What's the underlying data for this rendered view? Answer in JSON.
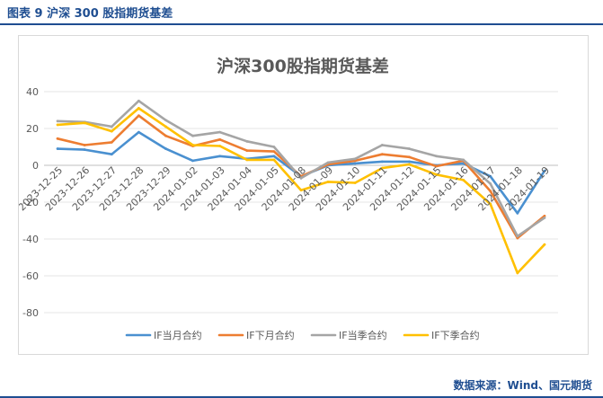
{
  "figure": {
    "label": "图表 9   沪深 300 股指期货基差",
    "source": "数据来源：Wind、国元期货"
  },
  "chart_data": {
    "type": "line",
    "title": "沪深300股指期货基差",
    "xlabel": "",
    "ylabel": "",
    "ylim": [
      -80,
      40
    ],
    "yticks": [
      40,
      20,
      0,
      -20,
      -40,
      -60,
      -80
    ],
    "grid": true,
    "legend_position": "bottom",
    "categories": [
      "2023-12-25",
      "2023-12-26",
      "2023-12-27",
      "2023-12-28",
      "2023-12-29",
      "2024-01-02",
      "2024-01-03",
      "2024-01-04",
      "2024-01-05",
      "2024-01-08",
      "2024-01-09",
      "2024-01-10",
      "2024-01-11",
      "2024-01-12",
      "2024-01-15",
      "2024-01-16",
      "2024-01-17",
      "2024-01-18",
      "2024-01-19"
    ],
    "series": [
      {
        "name": "IF当月合约",
        "color": "#4a90d0",
        "values": [
          9,
          8.5,
          6,
          18,
          9,
          2.5,
          5,
          3.5,
          5,
          -6,
          0,
          1,
          2,
          2,
          0,
          1,
          -6,
          -26,
          -3
        ]
      },
      {
        "name": "IF下月合约",
        "color": "#ed7d31",
        "values": [
          14.5,
          11,
          12.5,
          27,
          16,
          10.5,
          14,
          8,
          7.5,
          -6,
          0.5,
          2.5,
          6,
          4.5,
          -0.5,
          2.5,
          -14,
          -39.5,
          -27.5
        ]
      },
      {
        "name": "IF当季合约",
        "color": "#a5a5a5",
        "values": [
          24,
          23.5,
          21,
          35,
          24.5,
          16,
          18,
          13,
          10,
          -7,
          1.5,
          3.5,
          11,
          9,
          5,
          3,
          -10,
          -38.5,
          -28.5
        ]
      },
      {
        "name": "IF下季合约",
        "color": "#ffc000",
        "values": [
          22,
          23,
          18.5,
          31,
          21,
          11,
          10.5,
          3,
          3,
          -13.5,
          -9,
          -9.5,
          -1.5,
          0.5,
          -5,
          -8,
          -21,
          -58.5,
          -43
        ]
      }
    ]
  }
}
